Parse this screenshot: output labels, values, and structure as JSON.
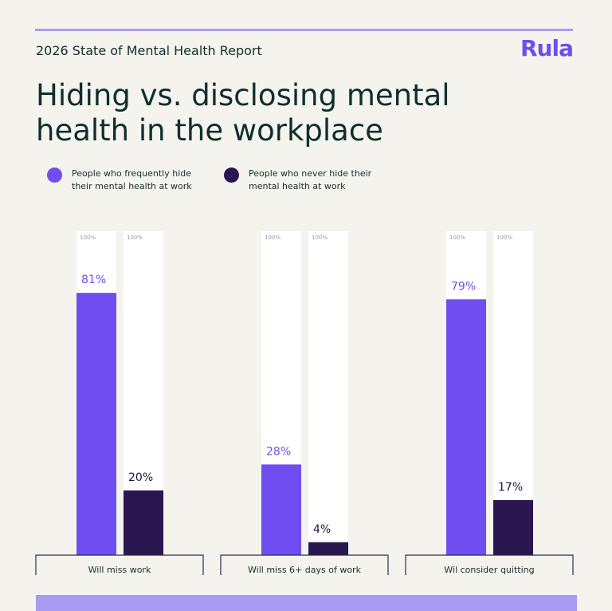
{
  "header": {
    "report": "2026 State of Mental Health Report",
    "logo": "Rula",
    "title": "Hiding vs. disclosing mental health in the workplace"
  },
  "colors": {
    "hide": "#6e4ef0",
    "never": "#2a1650",
    "track": "#ffffff",
    "accent": "#a99bf3"
  },
  "chart_data": {
    "type": "bar",
    "categories": [
      "Will miss work",
      "Will miss 6+ days of work",
      "Wil consider quitting"
    ],
    "series": [
      {
        "name": "People who frequently hide their mental health at work",
        "values": [
          81,
          28,
          79
        ],
        "labels": [
          "81%",
          "28%",
          "79%"
        ]
      },
      {
        "name": "People who never hide their mental health at work",
        "values": [
          20,
          4,
          17
        ],
        "labels": [
          "20%",
          "4%",
          "17%"
        ]
      }
    ],
    "max_label": "100%",
    "ylim": [
      0,
      100
    ]
  }
}
